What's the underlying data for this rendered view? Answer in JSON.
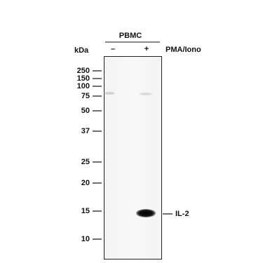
{
  "header": {
    "sample": "PBMC",
    "unit": "kDa",
    "lanes": [
      "–",
      "+"
    ],
    "treatment": "PMA/Iono"
  },
  "ladder": [
    "250",
    "150",
    "100",
    "75",
    "50",
    "37",
    "25",
    "20",
    "15",
    "10"
  ],
  "band": {
    "label": "IL-2"
  }
}
